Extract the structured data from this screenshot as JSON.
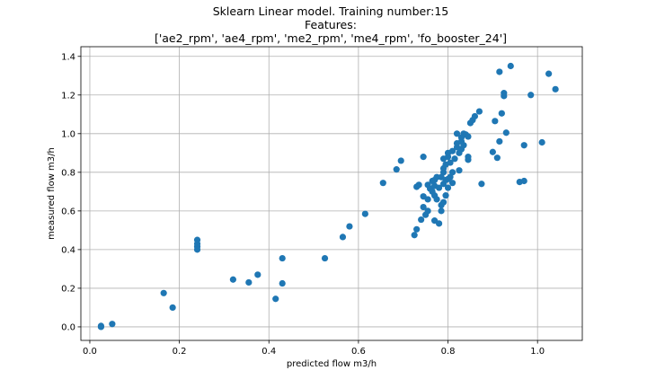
{
  "chart_data": {
    "type": "scatter",
    "title_lines": [
      "Sklearn Linear model. Training number:15",
      "Features:",
      "['ae2_rpm', 'ae4_rpm', 'me2_rpm', 'me4_rpm', 'fo_booster_24']"
    ],
    "xlabel": "predicted flow m3/h",
    "ylabel": "measured flow m3/h",
    "xlim": [
      -0.02,
      1.1
    ],
    "ylim": [
      -0.07,
      1.45
    ],
    "xticks": [
      0.0,
      0.2,
      0.4,
      0.6,
      0.8,
      1.0
    ],
    "xtick_labels": [
      "0.0",
      "0.2",
      "0.4",
      "0.6",
      "0.8",
      "1.0"
    ],
    "yticks": [
      0.0,
      0.2,
      0.4,
      0.6,
      0.8,
      1.0,
      1.2,
      1.4
    ],
    "ytick_labels": [
      "0.0",
      "0.2",
      "0.4",
      "0.6",
      "0.8",
      "1.0",
      "1.2",
      "1.4"
    ],
    "grid": true,
    "marker_color": "#1f77b4",
    "points": [
      [
        0.025,
        0.0
      ],
      [
        0.025,
        0.005
      ],
      [
        0.05,
        0.015
      ],
      [
        0.165,
        0.175
      ],
      [
        0.185,
        0.1
      ],
      [
        0.24,
        0.4
      ],
      [
        0.24,
        0.415
      ],
      [
        0.24,
        0.43
      ],
      [
        0.24,
        0.45
      ],
      [
        0.32,
        0.245
      ],
      [
        0.355,
        0.23
      ],
      [
        0.375,
        0.27
      ],
      [
        0.415,
        0.145
      ],
      [
        0.43,
        0.225
      ],
      [
        0.43,
        0.355
      ],
      [
        0.525,
        0.355
      ],
      [
        0.565,
        0.465
      ],
      [
        0.58,
        0.52
      ],
      [
        0.615,
        0.585
      ],
      [
        0.655,
        0.745
      ],
      [
        0.685,
        0.815
      ],
      [
        0.695,
        0.86
      ],
      [
        0.725,
        0.475
      ],
      [
        0.73,
        0.505
      ],
      [
        0.73,
        0.725
      ],
      [
        0.735,
        0.735
      ],
      [
        0.74,
        0.555
      ],
      [
        0.745,
        0.62
      ],
      [
        0.745,
        0.675
      ],
      [
        0.745,
        0.88
      ],
      [
        0.75,
        0.58
      ],
      [
        0.755,
        0.6
      ],
      [
        0.755,
        0.66
      ],
      [
        0.755,
        0.735
      ],
      [
        0.76,
        0.715
      ],
      [
        0.765,
        0.7
      ],
      [
        0.765,
        0.755
      ],
      [
        0.77,
        0.55
      ],
      [
        0.77,
        0.68
      ],
      [
        0.77,
        0.73
      ],
      [
        0.77,
        0.76
      ],
      [
        0.775,
        0.775
      ],
      [
        0.775,
        0.66
      ],
      [
        0.78,
        0.535
      ],
      [
        0.78,
        0.72
      ],
      [
        0.785,
        0.6
      ],
      [
        0.785,
        0.63
      ],
      [
        0.785,
        0.775
      ],
      [
        0.79,
        0.645
      ],
      [
        0.79,
        0.74
      ],
      [
        0.79,
        0.8
      ],
      [
        0.79,
        0.82
      ],
      [
        0.79,
        0.87
      ],
      [
        0.795,
        0.68
      ],
      [
        0.795,
        0.76
      ],
      [
        0.795,
        0.84
      ],
      [
        0.8,
        0.72
      ],
      [
        0.8,
        0.765
      ],
      [
        0.8,
        0.88
      ],
      [
        0.8,
        0.9
      ],
      [
        0.805,
        0.85
      ],
      [
        0.805,
        0.775
      ],
      [
        0.81,
        0.8
      ],
      [
        0.81,
        0.745
      ],
      [
        0.81,
        0.91
      ],
      [
        0.815,
        0.87
      ],
      [
        0.82,
        0.93
      ],
      [
        0.82,
        0.95
      ],
      [
        0.82,
        1.0
      ],
      [
        0.825,
        0.81
      ],
      [
        0.825,
        0.9
      ],
      [
        0.83,
        0.92
      ],
      [
        0.83,
        0.96
      ],
      [
        0.83,
        0.98
      ],
      [
        0.835,
        0.94
      ],
      [
        0.835,
        1.0
      ],
      [
        0.84,
        0.995
      ],
      [
        0.845,
        0.865
      ],
      [
        0.845,
        0.88
      ],
      [
        0.845,
        0.985
      ],
      [
        0.85,
        1.055
      ],
      [
        0.855,
        1.07
      ],
      [
        0.86,
        1.09
      ],
      [
        0.87,
        1.115
      ],
      [
        0.875,
        0.74
      ],
      [
        0.9,
        0.905
      ],
      [
        0.905,
        1.065
      ],
      [
        0.91,
        0.875
      ],
      [
        0.915,
        0.96
      ],
      [
        0.915,
        1.32
      ],
      [
        0.92,
        1.105
      ],
      [
        0.925,
        1.195
      ],
      [
        0.925,
        1.21
      ],
      [
        0.93,
        1.005
      ],
      [
        0.94,
        1.35
      ],
      [
        0.96,
        0.75
      ],
      [
        0.97,
        0.94
      ],
      [
        0.97,
        0.755
      ],
      [
        0.985,
        1.2
      ],
      [
        1.01,
        0.955
      ],
      [
        1.025,
        1.31
      ],
      [
        1.04,
        1.23
      ]
    ]
  }
}
